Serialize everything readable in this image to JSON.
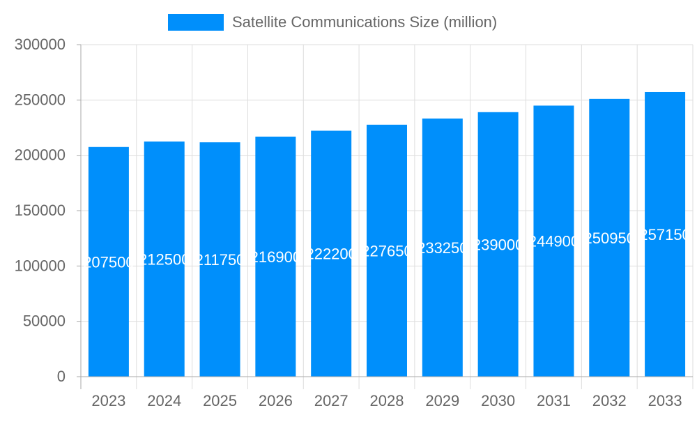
{
  "chart_data": {
    "type": "bar",
    "categories": [
      "2023",
      "2024",
      "2025",
      "2026",
      "2027",
      "2028",
      "2029",
      "2030",
      "2031",
      "2032",
      "2033"
    ],
    "series": [
      {
        "name": "Satellite Communications Size (million)",
        "values": [
          207500,
          212500,
          211750,
          216900,
          222200,
          227650,
          233250,
          239000,
          244900,
          250950,
          257150
        ],
        "color": "#008ffb"
      }
    ],
    "data_labels": [
      "207500",
      "212500",
      "211750",
      "216900",
      "222200",
      "227650",
      "233250",
      "239000",
      "244900",
      "250950",
      "257150"
    ],
    "yticks": [
      "0",
      "50000",
      "100000",
      "150000",
      "200000",
      "250000",
      "300000"
    ],
    "ylim": [
      0,
      300000
    ],
    "grid": true,
    "legend": "top-center",
    "title": "",
    "xlabel": "",
    "ylabel": ""
  }
}
